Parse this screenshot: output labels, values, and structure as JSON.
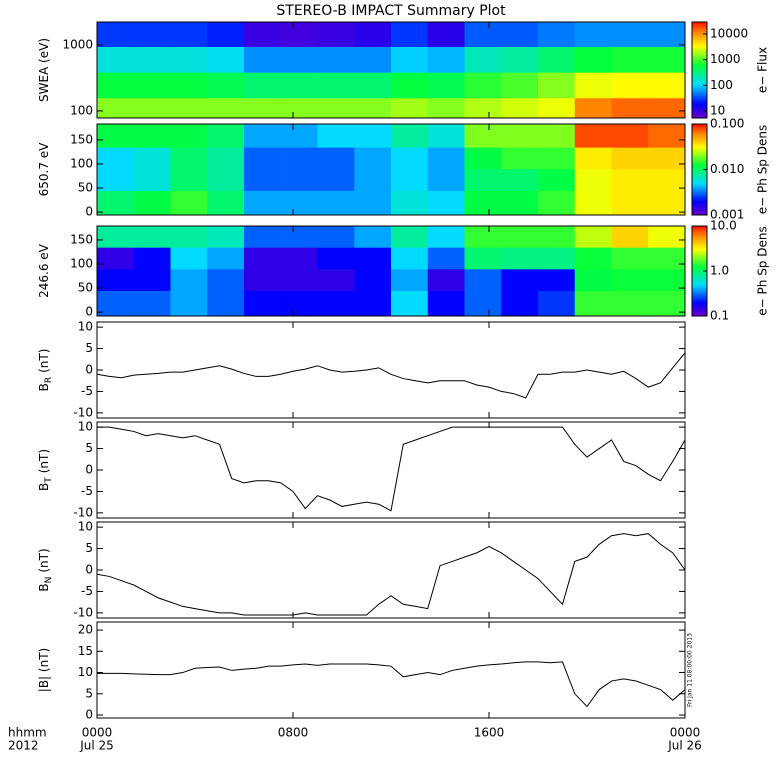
{
  "title": "STEREO-B IMPACT Summary Plot",
  "timestamp": "Fri Jan 11 08:00:00 2013",
  "xaxis": {
    "xlim": [
      0,
      24
    ],
    "xticks": [
      {
        "value": 0,
        "label": "0000"
      },
      {
        "value": 8,
        "label": "0800"
      },
      {
        "value": 16,
        "label": "1600"
      },
      {
        "value": 24,
        "label": "0000"
      }
    ],
    "dates": [
      {
        "value": 0,
        "label": "Jul 25"
      },
      {
        "value": 24,
        "label": "Jul 26"
      }
    ],
    "row_labels": [
      "hhmm",
      "2012"
    ]
  },
  "chart_data": [
    {
      "type": "heatmap",
      "ylabel": "SWEA (eV)",
      "ylog": true,
      "ylim": [
        78,
        2230
      ],
      "yticks": [
        100,
        1000
      ],
      "x": [
        0.75,
        2.25,
        3.75,
        5.25,
        6.75,
        8.25,
        9.75,
        11.25,
        12.75,
        14.25,
        15.75,
        17.25,
        18.75,
        20.25,
        21.75,
        23.25
      ],
      "y": [
        100,
        250,
        600,
        1500
      ],
      "values": [
        [
          1500,
          1500,
          1500,
          1500,
          1500,
          1500,
          1500,
          1500,
          1800,
          1500,
          2000,
          2500,
          3000,
          12000,
          15000,
          15000
        ],
        [
          600,
          600,
          600,
          500,
          400,
          400,
          400,
          400,
          600,
          500,
          800,
          1000,
          1500,
          3000,
          3500,
          3500
        ],
        [
          150,
          150,
          150,
          120,
          60,
          60,
          60,
          60,
          100,
          80,
          200,
          250,
          400,
          600,
          700,
          700
        ],
        [
          30,
          30,
          30,
          25,
          10,
          9,
          10,
          12,
          30,
          12,
          40,
          40,
          50,
          60,
          60,
          60
        ]
      ],
      "colorbar": {
        "label": "e− Flux",
        "clim": [
          5.4,
          29000
        ],
        "clog": true,
        "cticks": [
          10,
          100,
          1000,
          10000
        ]
      }
    },
    {
      "type": "heatmap",
      "ylabel": "650.7 eV",
      "ylog": false,
      "ylim": [
        -6,
        183
      ],
      "yticks": [
        0,
        50,
        100,
        150
      ],
      "x": [
        0.75,
        2.25,
        3.75,
        5.25,
        6.75,
        8.25,
        9.75,
        11.25,
        12.75,
        14.25,
        15.75,
        17.25,
        18.75,
        20.25,
        21.75,
        23.25
      ],
      "y": [
        22.5,
        67.5,
        112.5,
        157.5
      ],
      "values": [
        [
          0.01,
          0.012,
          0.015,
          0.01,
          0.004,
          0.004,
          0.004,
          0.004,
          0.006,
          0.005,
          0.012,
          0.012,
          0.015,
          0.03,
          0.035,
          0.035
        ],
        [
          0.005,
          0.006,
          0.01,
          0.008,
          0.003,
          0.003,
          0.003,
          0.004,
          0.005,
          0.004,
          0.01,
          0.01,
          0.012,
          0.03,
          0.035,
          0.035
        ],
        [
          0.005,
          0.006,
          0.01,
          0.008,
          0.003,
          0.003,
          0.003,
          0.004,
          0.005,
          0.004,
          0.012,
          0.015,
          0.015,
          0.035,
          0.04,
          0.04
        ],
        [
          0.012,
          0.012,
          0.012,
          0.01,
          0.004,
          0.004,
          0.005,
          0.005,
          0.008,
          0.006,
          0.02,
          0.02,
          0.02,
          0.08,
          0.08,
          0.07
        ]
      ],
      "colorbar": {
        "label": "e− Ph Sp Dens",
        "clim": [
          0.001,
          0.1
        ],
        "clog": true,
        "cticks": [
          0.001,
          {
            "value": 0.01,
            "label": "0.010"
          },
          {
            "value": 0.1,
            "label": "0.100"
          }
        ]
      }
    },
    {
      "type": "heatmap",
      "ylabel": "246.6 eV",
      "ylog": false,
      "ylim": [
        -8,
        179
      ],
      "yticks": [
        0,
        50,
        100,
        150
      ],
      "x": [
        0.75,
        2.25,
        3.75,
        5.25,
        6.75,
        8.25,
        9.75,
        11.25,
        12.75,
        14.25,
        15.75,
        17.25,
        18.75,
        20.25,
        21.75,
        23.25
      ],
      "y": [
        22.5,
        67.5,
        112.5,
        157.5
      ],
      "values": [
        [
          0.3,
          0.3,
          0.4,
          0.3,
          0.2,
          0.2,
          0.2,
          0.2,
          0.5,
          0.2,
          0.3,
          0.2,
          0.25,
          1.5,
          1.5,
          1.5
        ],
        [
          0.2,
          0.2,
          0.4,
          0.3,
          0.15,
          0.15,
          0.15,
          0.2,
          0.4,
          0.15,
          0.3,
          0.2,
          0.2,
          1.2,
          1.3,
          1.3
        ],
        [
          0.15,
          0.2,
          0.5,
          0.4,
          0.15,
          0.15,
          0.2,
          0.2,
          0.5,
          0.3,
          1.0,
          0.9,
          0.9,
          1.3,
          1.5,
          1.5
        ],
        [
          0.8,
          0.8,
          0.8,
          0.7,
          0.3,
          0.3,
          0.3,
          0.4,
          0.8,
          0.5,
          1.5,
          1.5,
          1.5,
          2.5,
          4,
          3
        ]
      ],
      "colorbar": {
        "label": "e− Ph Sp Dens",
        "clim": [
          0.1,
          10
        ],
        "clog": true,
        "cticks": [
          0.1,
          {
            "value": 1,
            "label": "1.0"
          },
          {
            "value": 10,
            "label": "10.0"
          }
        ]
      }
    },
    {
      "type": "line",
      "ylabel": "B",
      "ylabel_sub": "R",
      "ylabel_unit": "(nT)",
      "color": "#000000",
      "ylim": [
        -11.2,
        11.2
      ],
      "yticks": [
        -10,
        -5,
        0,
        5,
        10
      ],
      "x": [
        0,
        0.5,
        1,
        1.5,
        2,
        2.5,
        3,
        3.5,
        4,
        4.5,
        5,
        5.5,
        6,
        6.5,
        7,
        7.5,
        8,
        8.5,
        9,
        9.5,
        10,
        10.5,
        11,
        11.5,
        12,
        12.5,
        13,
        13.5,
        14,
        14.5,
        15,
        15.5,
        16,
        16.5,
        17,
        17.5,
        18,
        18.5,
        19,
        19.5,
        20,
        20.5,
        21,
        21.5,
        22,
        22.5,
        23,
        23.5,
        24
      ],
      "values": [
        -1,
        -1.5,
        -1.8,
        -1.2,
        -1,
        -0.8,
        -0.5,
        -0.5,
        0,
        0.5,
        1,
        0.2,
        -0.8,
        -1.5,
        -1.5,
        -1,
        -0.3,
        0.2,
        1,
        0,
        -0.5,
        -0.3,
        0,
        0.5,
        -1,
        -2,
        -2.5,
        -3,
        -2.5,
        -2.5,
        -2.5,
        -3.5,
        -4,
        -5,
        -5.5,
        -6.5,
        -1,
        -1,
        -0.5,
        -0.5,
        0,
        -0.5,
        -1,
        -0.3,
        -2,
        -4,
        -3,
        0.5,
        4
      ]
    },
    {
      "type": "line",
      "ylabel": "B",
      "ylabel_sub": "T",
      "ylabel_unit": "(nT)",
      "color": "#000000",
      "ylim": [
        -11.2,
        11.2
      ],
      "yticks": [
        -10,
        -5,
        0,
        5,
        10
      ],
      "x": [
        0,
        0.5,
        1,
        1.5,
        2,
        2.5,
        3,
        3.5,
        4,
        4.5,
        5,
        5.5,
        6,
        6.5,
        7,
        7.5,
        8,
        8.5,
        9,
        9.5,
        10,
        10.5,
        11,
        11.5,
        12,
        12.5,
        13,
        13.5,
        14,
        14.5,
        15,
        15.5,
        16,
        16.5,
        17,
        17.5,
        18,
        18.5,
        19,
        19.5,
        20,
        20.5,
        21,
        21.5,
        22,
        22.5,
        23,
        23.5,
        24
      ],
      "values": [
        10,
        10,
        9.5,
        9,
        8,
        8.5,
        8,
        7.5,
        8,
        7,
        6,
        -2,
        -3,
        -2.5,
        -2.5,
        -3,
        -5,
        -9,
        -6,
        -7,
        -8.5,
        -8,
        -7.5,
        -8,
        -9.5,
        6,
        7,
        8,
        9,
        10,
        10,
        10,
        10,
        10,
        10,
        10,
        10,
        10,
        10,
        6,
        3,
        5,
        7,
        2,
        1,
        -1,
        -2.5,
        2,
        7
      ]
    },
    {
      "type": "line",
      "ylabel": "B",
      "ylabel_sub": "N",
      "ylabel_unit": "(nT)",
      "color": "#000000",
      "ylim": [
        -11.2,
        11.2
      ],
      "yticks": [
        -10,
        -5,
        0,
        5,
        10
      ],
      "x": [
        0,
        0.5,
        1,
        1.5,
        2,
        2.5,
        3,
        3.5,
        4,
        4.5,
        5,
        5.5,
        6,
        6.5,
        7,
        7.5,
        8,
        8.5,
        9,
        9.5,
        10,
        10.5,
        11,
        11.5,
        12,
        12.5,
        13,
        13.5,
        14,
        14.5,
        15,
        15.5,
        16,
        16.5,
        17,
        17.5,
        18,
        18.5,
        19,
        19.5,
        20,
        20.5,
        21,
        21.5,
        22,
        22.5,
        23,
        23.5,
        24
      ],
      "values": [
        -1,
        -1.5,
        -2.5,
        -3.5,
        -5,
        -6.5,
        -7.5,
        -8.5,
        -9,
        -9.5,
        -10,
        -10,
        -10.5,
        -10.5,
        -10.5,
        -10.5,
        -10.5,
        -10,
        -10.5,
        -10.5,
        -10.5,
        -10.5,
        -10.5,
        -8,
        -6,
        -8,
        -8.5,
        -9,
        1,
        2,
        3,
        4,
        5.5,
        4,
        2,
        0,
        -2,
        -5,
        -8,
        2,
        3,
        6,
        8,
        8.5,
        8,
        8.5,
        6,
        4,
        0
      ]
    },
    {
      "type": "line",
      "ylabel": "|B| (nT)",
      "color": "#000000",
      "ylim": [
        -0.7,
        21.9
      ],
      "yticks": [
        0,
        5,
        10,
        15,
        20
      ],
      "x": [
        0,
        0.5,
        1,
        1.5,
        2,
        2.5,
        3,
        3.5,
        4,
        4.5,
        5,
        5.5,
        6,
        6.5,
        7,
        7.5,
        8,
        8.5,
        9,
        9.5,
        10,
        10.5,
        11,
        11.5,
        12,
        12.5,
        13,
        13.5,
        14,
        14.5,
        15,
        15.5,
        16,
        16.5,
        17,
        17.5,
        18,
        18.5,
        19,
        19.5,
        20,
        20.5,
        21,
        21.5,
        22,
        22.5,
        23,
        23.5,
        24
      ],
      "values": [
        9.8,
        9.8,
        9.8,
        9.7,
        9.6,
        9.5,
        9.5,
        10,
        11,
        11.2,
        11.3,
        10.5,
        10.8,
        11,
        11.5,
        11.5,
        11.8,
        12,
        11.7,
        12,
        12,
        12,
        12,
        11.8,
        11.5,
        9,
        9.5,
        10,
        9.5,
        10.5,
        11,
        11.5,
        11.8,
        12,
        12.3,
        12.5,
        12.5,
        12.3,
        12.5,
        5,
        2,
        6,
        8,
        8.5,
        8,
        7,
        6,
        3.5,
        6
      ]
    }
  ]
}
